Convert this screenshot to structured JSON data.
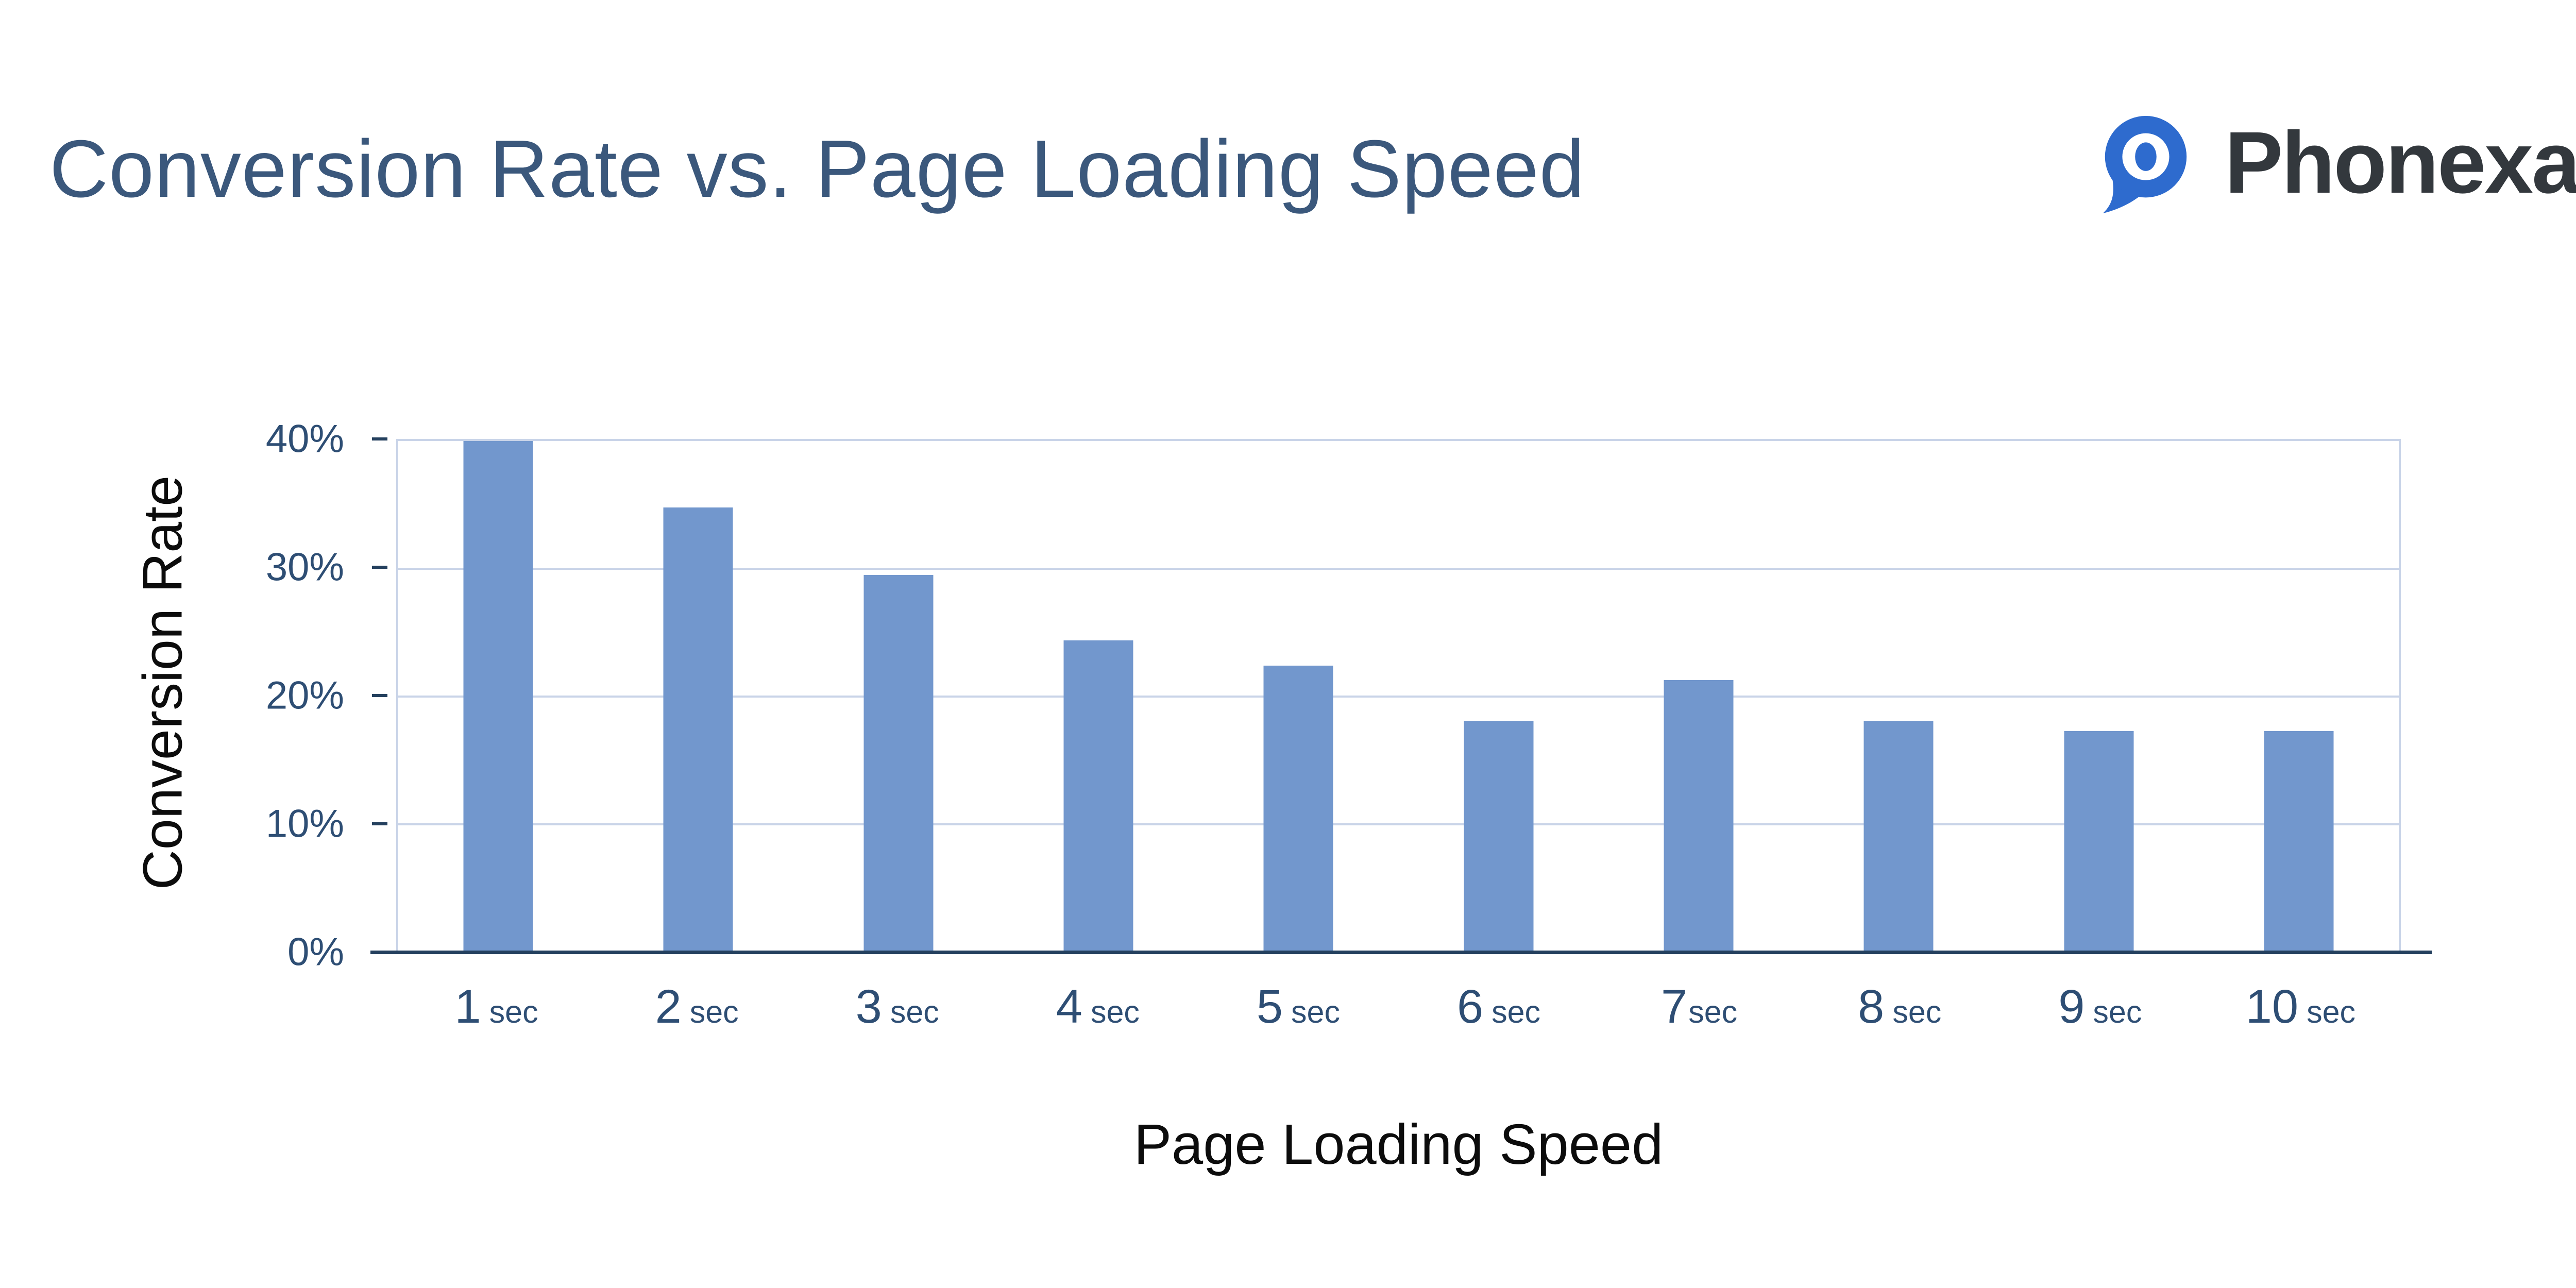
{
  "page": {
    "background": "#ffffff",
    "title": "Conversion Rate vs. Page Loading Speed"
  },
  "brand": {
    "name": "Phonexa",
    "registered_mark": "®",
    "icon": "phonexa-pin-icon",
    "icon_color": "#2e6bce",
    "text_color": "#33383d"
  },
  "chart_data": {
    "type": "bar",
    "title": "Conversion Rate vs. Page Loading Speed",
    "xlabel": "Page Loading Speed",
    "ylabel": "Conversion Rate",
    "categories": [
      "1 sec",
      "2 sec",
      "3 sec",
      "4 sec",
      "5 sec",
      "6 sec",
      "7sec",
      "8 sec",
      "9 sec",
      "10 sec"
    ],
    "values": [
      40,
      34.8,
      29.5,
      24.4,
      22.4,
      18.1,
      21.3,
      18.1,
      17.3,
      17.3
    ],
    "value_unit": "%",
    "ylim": [
      0,
      40
    ],
    "y_tick_labels": [
      "40%",
      "30%",
      "20%",
      "10%",
      "0%"
    ],
    "grid": true,
    "legend": null,
    "colors": {
      "bar": "#7297cd",
      "gridline": "#c9d4e8",
      "axis_line": "#24405e",
      "tick_label": "#2e4e74",
      "title": "#3b587c",
      "axis_title": "#0c0c0c"
    }
  }
}
